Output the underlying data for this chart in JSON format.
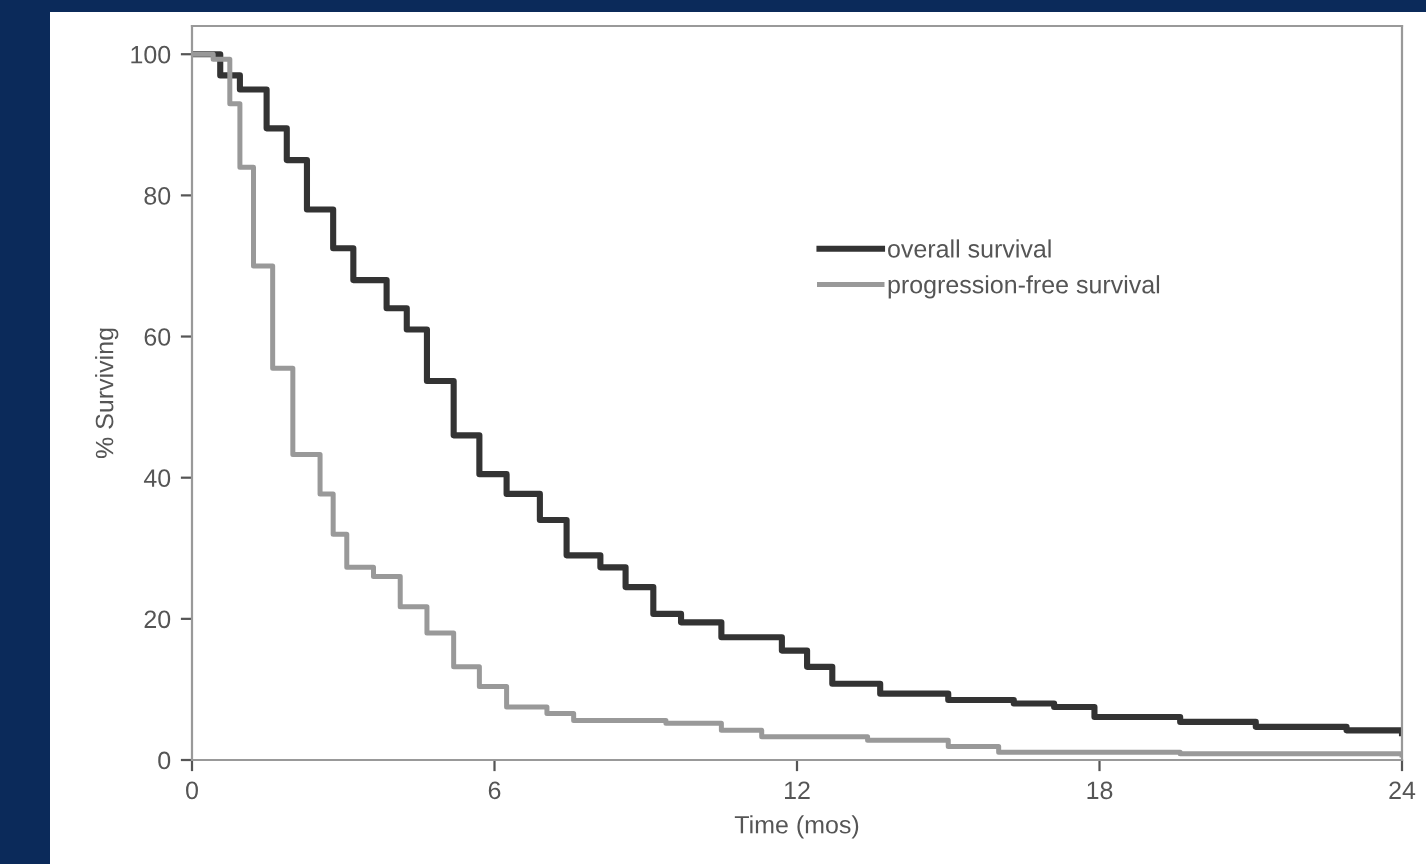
{
  "chart_data": {
    "type": "step",
    "xlabel": "Time (mos)",
    "ylabel": "% Surviving",
    "xlim": [
      0,
      24
    ],
    "ylim": [
      0,
      104
    ],
    "xticks": [
      0,
      6,
      12,
      18,
      24
    ],
    "yticks": [
      0,
      20,
      40,
      60,
      80,
      100
    ],
    "grid": false,
    "legend": "right",
    "marker": "none",
    "line_style": "solid",
    "series": [
      {
        "name": "overall survival",
        "color": "#333333",
        "x": [
          0,
          0.4,
          0.56,
          0.95,
          1.48,
          1.88,
          2.28,
          2.8,
          3.2,
          3.86,
          4.26,
          4.66,
          5.19,
          5.7,
          6.24,
          6.9,
          7.43,
          8.1,
          8.6,
          9.15,
          9.7,
          10.5,
          11.7,
          12.2,
          12.7,
          13.65,
          15.0,
          16.3,
          17.1,
          17.9,
          19.6,
          21.1,
          22.9,
          24
        ],
        "values": [
          100,
          100,
          97,
          95,
          89.5,
          85,
          78,
          72.5,
          68,
          64,
          61,
          53.7,
          46,
          40.5,
          37.7,
          34,
          29,
          27.3,
          24.5,
          20.7,
          19.5,
          17.4,
          15.5,
          13.2,
          10.8,
          9.4,
          8.5,
          8.0,
          7.5,
          6.1,
          5.4,
          4.7,
          4.2,
          3.8
        ]
      },
      {
        "name": "progression-free survival",
        "color": "#999999",
        "x": [
          0,
          0.42,
          0.75,
          0.95,
          1.22,
          1.6,
          2.0,
          2.54,
          2.8,
          3.07,
          3.6,
          4.13,
          4.66,
          5.19,
          5.7,
          6.24,
          7.04,
          7.57,
          8.76,
          9.4,
          10.5,
          11.3,
          13.4,
          15.0,
          16.0,
          19.6,
          24
        ],
        "values": [
          100,
          99.3,
          93,
          84,
          70,
          55.5,
          43.3,
          37.7,
          32,
          27.3,
          26,
          21.7,
          18,
          13.2,
          10.4,
          7.5,
          6.6,
          5.6,
          5.6,
          5.2,
          4.2,
          3.3,
          2.8,
          1.9,
          1.1,
          0.9,
          0.7
        ]
      }
    ]
  }
}
